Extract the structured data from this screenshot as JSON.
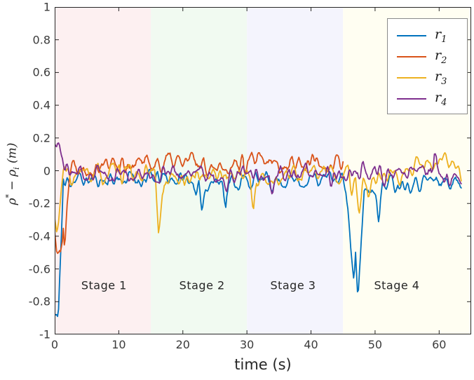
{
  "figure": {
    "background": "#ffffff",
    "frame_color": "#262626",
    "tick_label_color": "#3b3b3b"
  },
  "chart_data": {
    "type": "line",
    "title": "",
    "xlabel": "time (s)",
    "ylabel_text": "ρ* − ρi (m)",
    "ylabel_parts": [
      {
        "t": "ρ",
        "style": "normal"
      },
      {
        "t": "*",
        "style": "sup"
      },
      {
        "t": " − ",
        "style": "normal"
      },
      {
        "t": "ρ",
        "style": "normal"
      },
      {
        "t": "i",
        "style": "sub"
      },
      {
        "t": " (m)",
        "style": "normal"
      }
    ],
    "xlim": [
      0,
      65
    ],
    "ylim": [
      -1,
      1
    ],
    "xticks": [
      0,
      10,
      20,
      30,
      40,
      50,
      60
    ],
    "yticks": [
      -1,
      -0.8,
      -0.6,
      -0.4,
      -0.2,
      0,
      0.2,
      0.4,
      0.6,
      0.8,
      1
    ],
    "grid": false,
    "legend_position": "top-right",
    "stages": [
      {
        "label": "Stage 1",
        "t_start": 0,
        "t_end": 15,
        "color": "#FDF0F1",
        "label_t": 7.7,
        "label_y": -0.7
      },
      {
        "label": "Stage 2",
        "t_start": 15,
        "t_end": 30,
        "color": "#F1FAF1",
        "label_t": 23.0,
        "label_y": -0.7
      },
      {
        "label": "Stage 3",
        "t_start": 30,
        "t_end": 45,
        "color": "#F4F4FD",
        "label_t": 37.2,
        "label_y": -0.7
      },
      {
        "label": "Stage 4",
        "t_start": 45,
        "t_end": 65,
        "color": "#FFFEF2",
        "label_t": 53.4,
        "label_y": -0.7
      }
    ],
    "noise_dt": 0.15,
    "series": [
      {
        "name": "r1",
        "name_base": "r",
        "name_sub": "1",
        "color": "#0072BD",
        "seed": 11,
        "noise": 0.042,
        "t_end": 63.5,
        "anchors": [
          [
            0,
            -0.88
          ],
          [
            0.3,
            -0.9
          ],
          [
            0.55,
            -0.93
          ],
          [
            0.8,
            -0.62
          ],
          [
            1.1,
            -0.33
          ],
          [
            1.35,
            -0.06
          ],
          [
            1.6,
            -0.12
          ],
          [
            2.0,
            -0.05
          ],
          [
            5,
            -0.06
          ],
          [
            10,
            -0.05
          ],
          [
            21.6,
            -0.05
          ],
          [
            22.1,
            -0.2
          ],
          [
            22.5,
            -0.12
          ],
          [
            23.0,
            -0.22
          ],
          [
            23.6,
            -0.07
          ],
          [
            26.2,
            -0.06
          ],
          [
            26.7,
            -0.18
          ],
          [
            27.2,
            -0.07
          ],
          [
            34,
            -0.06
          ],
          [
            45.4,
            -0.05
          ],
          [
            46.0,
            -0.35
          ],
          [
            46.7,
            -0.72
          ],
          [
            46.95,
            -0.55
          ],
          [
            47.3,
            -0.81
          ],
          [
            47.8,
            -0.45
          ],
          [
            48.3,
            -0.12
          ],
          [
            49.0,
            -0.1
          ],
          [
            50.2,
            -0.12
          ],
          [
            50.6,
            -0.28
          ],
          [
            51.2,
            -0.08
          ],
          [
            55,
            -0.06
          ],
          [
            60,
            -0.06
          ],
          [
            63.5,
            -0.08
          ]
        ]
      },
      {
        "name": "r2",
        "name_base": "r",
        "name_sub": "2",
        "color": "#D95319",
        "seed": 22,
        "noise": 0.05,
        "t_end": 45,
        "anchors": [
          [
            0,
            -0.36
          ],
          [
            0.3,
            -0.44
          ],
          [
            0.7,
            -0.5
          ],
          [
            0.95,
            -0.53
          ],
          [
            1.2,
            -0.42
          ],
          [
            1.35,
            -0.3
          ],
          [
            1.55,
            -0.4
          ],
          [
            1.9,
            -0.18
          ],
          [
            2.3,
            -0.02
          ],
          [
            3,
            0.04
          ],
          [
            10,
            0.05
          ],
          [
            20,
            0.05
          ],
          [
            30,
            0.04
          ],
          [
            40,
            0.05
          ],
          [
            45,
            0.04
          ]
        ]
      },
      {
        "name": "r3",
        "name_base": "r",
        "name_sub": "3",
        "color": "#EDB120",
        "seed": 33,
        "noise": 0.045,
        "t_end": 63.5,
        "anchors": [
          [
            0,
            -0.32
          ],
          [
            0.3,
            -0.37
          ],
          [
            0.6,
            -0.3
          ],
          [
            1.0,
            -0.15
          ],
          [
            1.5,
            0.0
          ],
          [
            2.2,
            -0.04
          ],
          [
            10,
            -0.02
          ],
          [
            15.7,
            -0.03
          ],
          [
            16.2,
            -0.33
          ],
          [
            16.6,
            -0.25
          ],
          [
            17.1,
            -0.06
          ],
          [
            25,
            -0.02
          ],
          [
            30.5,
            -0.03
          ],
          [
            31.0,
            -0.24
          ],
          [
            31.5,
            -0.06
          ],
          [
            40,
            -0.02
          ],
          [
            45.8,
            -0.03
          ],
          [
            46.3,
            -0.13
          ],
          [
            46.9,
            -0.04
          ],
          [
            47.5,
            -0.2
          ],
          [
            48.1,
            -0.05
          ],
          [
            48.9,
            -0.16
          ],
          [
            49.4,
            -0.04
          ],
          [
            55,
            -0.02
          ],
          [
            60.5,
            0.05
          ],
          [
            63.5,
            0.0
          ]
        ]
      },
      {
        "name": "r4",
        "name_base": "r",
        "name_sub": "4",
        "color": "#7E2F8E",
        "seed": 44,
        "noise": 0.045,
        "t_end": 63.5,
        "anchors": [
          [
            0,
            0.16
          ],
          [
            0.4,
            0.17
          ],
          [
            0.8,
            0.14
          ],
          [
            1.1,
            0.08
          ],
          [
            1.5,
            0.02
          ],
          [
            2.2,
            -0.01
          ],
          [
            10,
            -0.03
          ],
          [
            20,
            -0.02
          ],
          [
            26.0,
            -0.03
          ],
          [
            26.5,
            -0.12
          ],
          [
            27.0,
            -0.03
          ],
          [
            33.5,
            -0.02
          ],
          [
            34.0,
            -0.14
          ],
          [
            34.5,
            -0.03
          ],
          [
            45,
            -0.03
          ],
          [
            52,
            -0.02
          ],
          [
            58.9,
            0.0
          ],
          [
            59.3,
            0.1
          ],
          [
            59.8,
            -0.02
          ],
          [
            63.5,
            -0.03
          ]
        ]
      }
    ]
  }
}
